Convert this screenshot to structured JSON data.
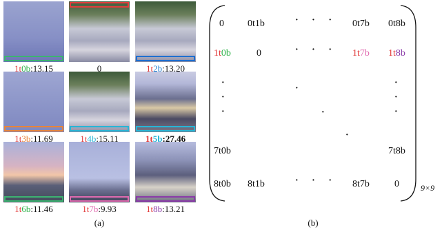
{
  "panel_a": {
    "label": "(a)",
    "tiles": [
      {
        "caption_prefix": "1t",
        "caption_mid": "0b",
        "caption_score": ":13.15",
        "prefix_color": "red",
        "mid_color": "green",
        "bar_color": "#3cb371",
        "bar_pos": "bottom",
        "scene": "sky-dark"
      },
      {
        "caption_prefix": "",
        "caption_mid": "",
        "caption_score": "0",
        "prefix_color": "black",
        "mid_color": "black",
        "bar_color": "#e23b3b",
        "bar_pos": "top",
        "scene": "street-wet"
      },
      {
        "caption_prefix": "1t",
        "caption_mid": "2b",
        "caption_score": ":13.20",
        "prefix_color": "red",
        "mid_color": "blue",
        "bar_color": "#1f6fd0",
        "bar_pos": "bottom",
        "scene": "street-wet"
      },
      {
        "caption_prefix": "1t",
        "caption_mid": "3b",
        "caption_score": ":11.69",
        "prefix_color": "red",
        "mid_color": "orange",
        "bar_color": "#e8843a",
        "bar_pos": "bottom",
        "scene": "sky"
      },
      {
        "caption_prefix": "1t",
        "caption_mid": "4b",
        "caption_score": ":15.11",
        "prefix_color": "red",
        "mid_color": "cyan",
        "bar_color": "#27b5d6",
        "bar_pos": "bottom",
        "scene": "street-wet"
      },
      {
        "caption_prefix": "1t",
        "caption_mid": "5b",
        "caption_score": ":27.46",
        "prefix_color": "red",
        "mid_color": "cyan",
        "bar_color": "#27b5d6",
        "bar_pos": "bottom",
        "scene": "house",
        "bold": true
      },
      {
        "caption_prefix": "1t",
        "caption_mid": "6b",
        "caption_score": ":11.46",
        "prefix_color": "red",
        "mid_color": "green",
        "bar_color": "#3cb371",
        "bar_pos": "bottom",
        "scene": "dusk"
      },
      {
        "caption_prefix": "1t",
        "caption_mid": "7b",
        "caption_score": ":9.93",
        "prefix_color": "red",
        "mid_color": "pink",
        "bar_color": "#e06bb0",
        "bar_pos": "bottom",
        "scene": "roof"
      },
      {
        "caption_prefix": "1t",
        "caption_mid": "8b",
        "caption_score": ":13.21",
        "prefix_color": "red",
        "mid_color": "purple",
        "bar_color": "#8a3aa8",
        "bar_pos": "bottom",
        "scene": "house2"
      }
    ]
  },
  "panel_b": {
    "label": "(b)",
    "dimension": "9×9",
    "row0": {
      "c0": "0",
      "c1": "0t1b",
      "dots": "· · ·",
      "c7": "0t7b",
      "c8": "0t8b"
    },
    "row1": {
      "c0a": "1t",
      "c0b": "0b",
      "c1": "0",
      "dots": "· · ·",
      "c7a": "1t",
      "c7b": "7b",
      "c8a": "1t",
      "c8b": "8b"
    },
    "row7": {
      "c0": "7t0b",
      "c8": "7t8b"
    },
    "row8": {
      "c0": "8t0b",
      "c1": "8t1b",
      "dots": "· · ·",
      "c7": "8t7b",
      "c8": "0"
    }
  }
}
